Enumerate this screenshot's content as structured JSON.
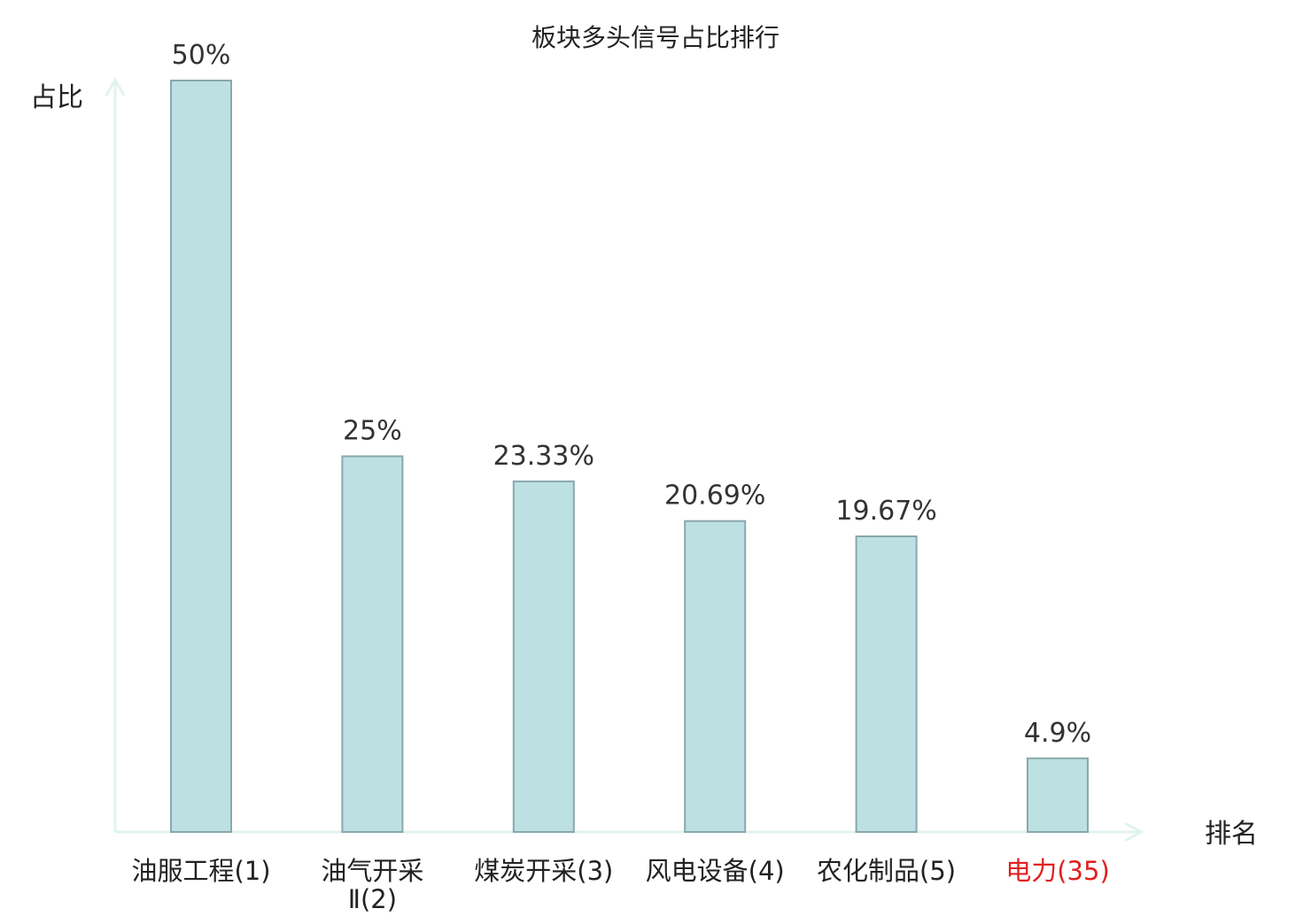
{
  "chart_data": {
    "type": "bar",
    "title": "板块多头信号占比排行",
    "ylabel": "占比",
    "xlabel": "排名",
    "categories": [
      [
        "油服工程(1)"
      ],
      [
        "油气开采",
        "Ⅱ(2)"
      ],
      [
        "煤炭开采(3)"
      ],
      [
        "风电设备(4)"
      ],
      [
        "农化制品(5)"
      ],
      [
        "电力(35)"
      ]
    ],
    "values": [
      50,
      25,
      23.33,
      20.69,
      19.67,
      4.9
    ],
    "value_labels": [
      "50%",
      "25%",
      "23.33%",
      "20.69%",
      "19.67%",
      "4.9%"
    ],
    "highlight_index": 5,
    "ylim": [
      0,
      50
    ],
    "grid": false,
    "legend": "none",
    "colors": {
      "bar_fill": "#bde0e3",
      "bar_stroke": "#8aa8ab",
      "axis": "#e0f3f0",
      "label": "#222222",
      "highlight": "#e02020"
    }
  }
}
